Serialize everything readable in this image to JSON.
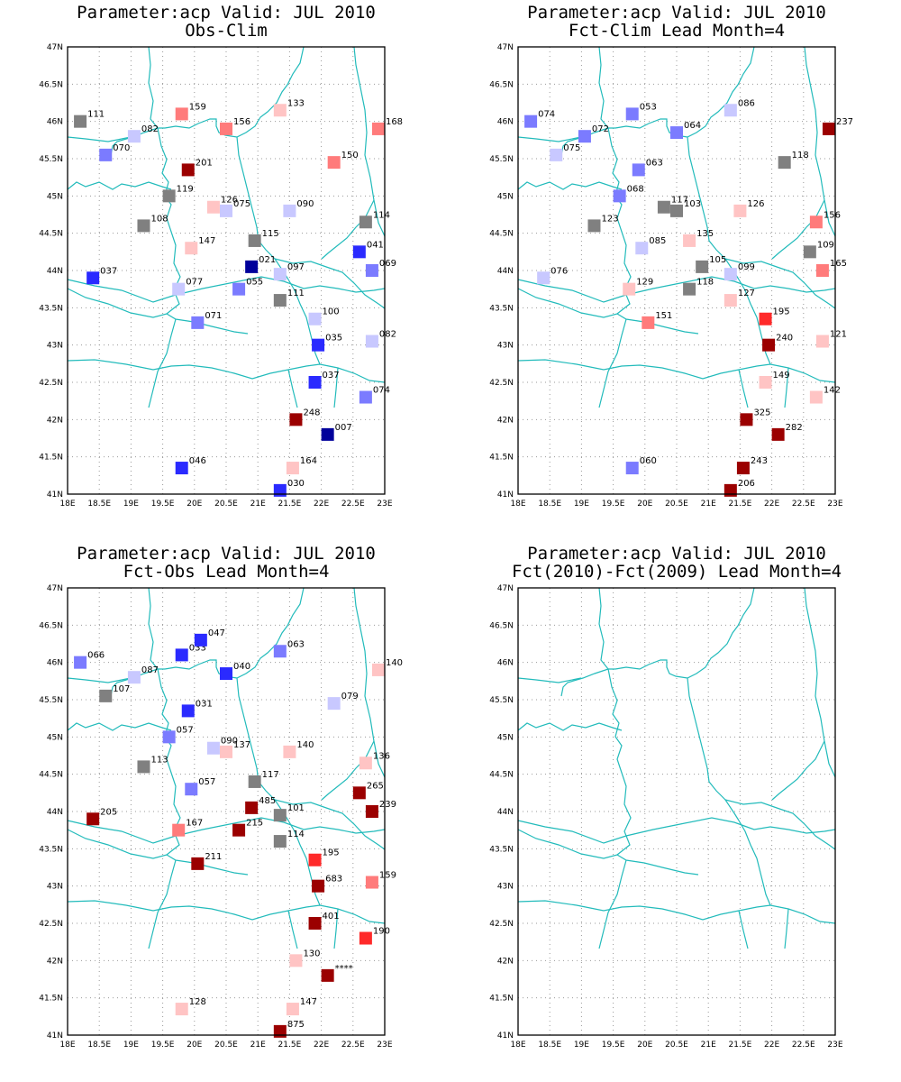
{
  "panels": [
    {
      "title1": "Parameter:acp Valid: JUL 2010",
      "title2": "Obs-Clim",
      "stations": [
        {
          "lon": 18.2,
          "lat": 46.0,
          "label": "111",
          "color": "#808080"
        },
        {
          "lon": 19.8,
          "lat": 46.1,
          "label": "159",
          "color": "#ff7b7b"
        },
        {
          "lon": 21.35,
          "lat": 46.15,
          "label": "133",
          "color": "#ffc4c4"
        },
        {
          "lon": 22.9,
          "lat": 45.9,
          "label": "168",
          "color": "#ff7b7b"
        },
        {
          "lon": 19.05,
          "lat": 45.8,
          "label": "082",
          "color": "#c8c8ff"
        },
        {
          "lon": 20.5,
          "lat": 45.9,
          "label": "156",
          "color": "#ff7b7b"
        },
        {
          "lon": 18.6,
          "lat": 45.55,
          "label": "070",
          "color": "#7b7bff"
        },
        {
          "lon": 19.9,
          "lat": 45.35,
          "label": "201",
          "color": "#9b0000"
        },
        {
          "lon": 22.2,
          "lat": 45.45,
          "label": "150",
          "color": "#ff7b7b"
        },
        {
          "lon": 19.6,
          "lat": 45.0,
          "label": "119",
          "color": "#808080"
        },
        {
          "lon": 20.3,
          "lat": 44.85,
          "label": "126",
          "color": "#ffc4c4"
        },
        {
          "lon": 20.5,
          "lat": 44.8,
          "label": "075",
          "color": "#c8c8ff"
        },
        {
          "lon": 21.5,
          "lat": 44.8,
          "label": "090",
          "color": "#c8c8ff"
        },
        {
          "lon": 22.7,
          "lat": 44.65,
          "label": "114",
          "color": "#808080"
        },
        {
          "lon": 19.2,
          "lat": 44.6,
          "label": "108",
          "color": "#808080"
        },
        {
          "lon": 19.95,
          "lat": 44.3,
          "label": "147",
          "color": "#ffc4c4"
        },
        {
          "lon": 20.95,
          "lat": 44.4,
          "label": "115",
          "color": "#808080"
        },
        {
          "lon": 22.6,
          "lat": 44.25,
          "label": "041",
          "color": "#2a2aff"
        },
        {
          "lon": 20.9,
          "lat": 44.05,
          "label": "021",
          "color": "#00009b"
        },
        {
          "lon": 21.35,
          "lat": 43.95,
          "label": "097",
          "color": "#c8c8ff"
        },
        {
          "lon": 22.8,
          "lat": 44.0,
          "label": "069",
          "color": "#7b7bff"
        },
        {
          "lon": 18.4,
          "lat": 43.9,
          "label": "037",
          "color": "#2a2aff"
        },
        {
          "lon": 19.75,
          "lat": 43.75,
          "label": "077",
          "color": "#c8c8ff"
        },
        {
          "lon": 20.7,
          "lat": 43.75,
          "label": "055",
          "color": "#7b7bff"
        },
        {
          "lon": 21.35,
          "lat": 43.6,
          "label": "111",
          "color": "#808080"
        },
        {
          "lon": 21.9,
          "lat": 43.35,
          "label": "100",
          "color": "#c8c8ff"
        },
        {
          "lon": 20.05,
          "lat": 43.3,
          "label": "071",
          "color": "#7b7bff"
        },
        {
          "lon": 21.95,
          "lat": 43.0,
          "label": "035",
          "color": "#2a2aff"
        },
        {
          "lon": 22.8,
          "lat": 43.05,
          "label": "082",
          "color": "#c8c8ff"
        },
        {
          "lon": 21.9,
          "lat": 42.5,
          "label": "037",
          "color": "#2a2aff"
        },
        {
          "lon": 22.7,
          "lat": 42.3,
          "label": "074",
          "color": "#7b7bff"
        },
        {
          "lon": 21.6,
          "lat": 42.0,
          "label": "248",
          "color": "#9b0000"
        },
        {
          "lon": 22.1,
          "lat": 41.8,
          "label": "007",
          "color": "#00009b"
        },
        {
          "lon": 19.8,
          "lat": 41.35,
          "label": "046",
          "color": "#2a2aff"
        },
        {
          "lon": 21.55,
          "lat": 41.35,
          "label": "164",
          "color": "#ffc4c4"
        },
        {
          "lon": 21.35,
          "lat": 41.05,
          "label": "030",
          "color": "#2a2aff"
        }
      ]
    },
    {
      "title1": "Parameter:acp Valid: JUL 2010",
      "title2": "Fct-Clim Lead Month=4",
      "stations": [
        {
          "lon": 18.2,
          "lat": 46.0,
          "label": "074",
          "color": "#7b7bff"
        },
        {
          "lon": 19.8,
          "lat": 46.1,
          "label": "053",
          "color": "#7b7bff"
        },
        {
          "lon": 21.35,
          "lat": 46.15,
          "label": "086",
          "color": "#c8c8ff"
        },
        {
          "lon": 22.9,
          "lat": 45.9,
          "label": "237",
          "color": "#9b0000"
        },
        {
          "lon": 19.05,
          "lat": 45.8,
          "label": "072",
          "color": "#7b7bff"
        },
        {
          "lon": 20.5,
          "lat": 45.85,
          "label": "064",
          "color": "#7b7bff"
        },
        {
          "lon": 18.6,
          "lat": 45.55,
          "label": "075",
          "color": "#c8c8ff"
        },
        {
          "lon": 19.9,
          "lat": 45.35,
          "label": "063",
          "color": "#7b7bff"
        },
        {
          "lon": 22.2,
          "lat": 45.45,
          "label": "118",
          "color": "#808080"
        },
        {
          "lon": 19.6,
          "lat": 45.0,
          "label": "068",
          "color": "#7b7bff"
        },
        {
          "lon": 20.3,
          "lat": 44.85,
          "label": "117",
          "color": "#808080"
        },
        {
          "lon": 20.5,
          "lat": 44.8,
          "label": "103",
          "color": "#808080"
        },
        {
          "lon": 21.5,
          "lat": 44.8,
          "label": "126",
          "color": "#ffc4c4"
        },
        {
          "lon": 22.7,
          "lat": 44.65,
          "label": "156",
          "color": "#ff7b7b"
        },
        {
          "lon": 19.2,
          "lat": 44.6,
          "label": "123",
          "color": "#808080"
        },
        {
          "lon": 19.95,
          "lat": 44.3,
          "label": "085",
          "color": "#c8c8ff"
        },
        {
          "lon": 20.7,
          "lat": 44.4,
          "label": "135",
          "color": "#ffc4c4"
        },
        {
          "lon": 22.6,
          "lat": 44.25,
          "label": "109",
          "color": "#808080"
        },
        {
          "lon": 20.9,
          "lat": 44.05,
          "label": "105",
          "color": "#808080"
        },
        {
          "lon": 21.35,
          "lat": 43.95,
          "label": "099",
          "color": "#c8c8ff"
        },
        {
          "lon": 22.8,
          "lat": 44.0,
          "label": "165",
          "color": "#ff7b7b"
        },
        {
          "lon": 18.4,
          "lat": 43.9,
          "label": "076",
          "color": "#c8c8ff"
        },
        {
          "lon": 19.75,
          "lat": 43.75,
          "label": "129",
          "color": "#ffc4c4"
        },
        {
          "lon": 20.7,
          "lat": 43.75,
          "label": "118",
          "color": "#808080"
        },
        {
          "lon": 21.35,
          "lat": 43.6,
          "label": "127",
          "color": "#ffc4c4"
        },
        {
          "lon": 21.9,
          "lat": 43.35,
          "label": "195",
          "color": "#ff2a2a"
        },
        {
          "lon": 20.05,
          "lat": 43.3,
          "label": "151",
          "color": "#ff7b7b"
        },
        {
          "lon": 21.95,
          "lat": 43.0,
          "label": "240",
          "color": "#9b0000"
        },
        {
          "lon": 22.8,
          "lat": 43.05,
          "label": "121",
          "color": "#ffc4c4"
        },
        {
          "lon": 21.9,
          "lat": 42.5,
          "label": "149",
          "color": "#ffc4c4"
        },
        {
          "lon": 22.7,
          "lat": 42.3,
          "label": "142",
          "color": "#ffc4c4"
        },
        {
          "lon": 21.6,
          "lat": 42.0,
          "label": "325",
          "color": "#9b0000"
        },
        {
          "lon": 22.1,
          "lat": 41.8,
          "label": "282",
          "color": "#9b0000"
        },
        {
          "lon": 19.8,
          "lat": 41.35,
          "label": "060",
          "color": "#7b7bff"
        },
        {
          "lon": 21.55,
          "lat": 41.35,
          "label": "243",
          "color": "#9b0000"
        },
        {
          "lon": 21.35,
          "lat": 41.05,
          "label": "206",
          "color": "#9b0000"
        }
      ]
    },
    {
      "title1": "Parameter:acp Valid: JUL 2010",
      "title2": "Fct-Obs Lead Month=4",
      "stations": [
        {
          "lon": 18.2,
          "lat": 46.0,
          "label": "066",
          "color": "#7b7bff"
        },
        {
          "lon": 19.8,
          "lat": 46.1,
          "label": "033",
          "color": "#2a2aff"
        },
        {
          "lon": 20.1,
          "lat": 46.3,
          "label": "047",
          "color": "#2a2aff"
        },
        {
          "lon": 21.35,
          "lat": 46.15,
          "label": "063",
          "color": "#7b7bff"
        },
        {
          "lon": 22.9,
          "lat": 45.9,
          "label": "140",
          "color": "#ffc4c4"
        },
        {
          "lon": 19.05,
          "lat": 45.8,
          "label": "087",
          "color": "#c8c8ff"
        },
        {
          "lon": 20.5,
          "lat": 45.85,
          "label": "040",
          "color": "#2a2aff"
        },
        {
          "lon": 18.6,
          "lat": 45.55,
          "label": "107",
          "color": "#808080"
        },
        {
          "lon": 19.9,
          "lat": 45.35,
          "label": "031",
          "color": "#2a2aff"
        },
        {
          "lon": 22.2,
          "lat": 45.45,
          "label": "079",
          "color": "#c8c8ff"
        },
        {
          "lon": 19.6,
          "lat": 45.0,
          "label": "057",
          "color": "#7b7bff"
        },
        {
          "lon": 20.3,
          "lat": 44.85,
          "label": "090",
          "color": "#c8c8ff"
        },
        {
          "lon": 20.5,
          "lat": 44.8,
          "label": "137",
          "color": "#ffc4c4"
        },
        {
          "lon": 21.5,
          "lat": 44.8,
          "label": "140",
          "color": "#ffc4c4"
        },
        {
          "lon": 22.7,
          "lat": 44.65,
          "label": "136",
          "color": "#ffc4c4"
        },
        {
          "lon": 19.2,
          "lat": 44.6,
          "label": "113",
          "color": "#808080"
        },
        {
          "lon": 19.95,
          "lat": 44.3,
          "label": "057",
          "color": "#7b7bff"
        },
        {
          "lon": 20.95,
          "lat": 44.4,
          "label": "117",
          "color": "#808080"
        },
        {
          "lon": 22.6,
          "lat": 44.25,
          "label": "265",
          "color": "#9b0000"
        },
        {
          "lon": 20.9,
          "lat": 44.05,
          "label": "485",
          "color": "#9b0000"
        },
        {
          "lon": 21.35,
          "lat": 43.95,
          "label": "101",
          "color": "#808080"
        },
        {
          "lon": 22.8,
          "lat": 44.0,
          "label": "239",
          "color": "#9b0000"
        },
        {
          "lon": 18.4,
          "lat": 43.9,
          "label": "205",
          "color": "#9b0000"
        },
        {
          "lon": 19.75,
          "lat": 43.75,
          "label": "167",
          "color": "#ff7b7b"
        },
        {
          "lon": 20.7,
          "lat": 43.75,
          "label": "215",
          "color": "#9b0000"
        },
        {
          "lon": 21.35,
          "lat": 43.6,
          "label": "114",
          "color": "#808080"
        },
        {
          "lon": 21.9,
          "lat": 43.35,
          "label": "195",
          "color": "#ff2a2a"
        },
        {
          "lon": 20.05,
          "lat": 43.3,
          "label": "211",
          "color": "#9b0000"
        },
        {
          "lon": 21.95,
          "lat": 43.0,
          "label": "683",
          "color": "#9b0000"
        },
        {
          "lon": 22.8,
          "lat": 43.05,
          "label": "159",
          "color": "#ff7b7b"
        },
        {
          "lon": 21.9,
          "lat": 42.5,
          "label": "401",
          "color": "#9b0000"
        },
        {
          "lon": 22.7,
          "lat": 42.3,
          "label": "190",
          "color": "#ff2a2a"
        },
        {
          "lon": 21.6,
          "lat": 42.0,
          "label": "130",
          "color": "#ffc4c4"
        },
        {
          "lon": 22.1,
          "lat": 41.8,
          "label": "****",
          "color": "#9b0000"
        },
        {
          "lon": 19.8,
          "lat": 41.35,
          "label": "128",
          "color": "#ffc4c4"
        },
        {
          "lon": 21.55,
          "lat": 41.35,
          "label": "147",
          "color": "#ffc4c4"
        },
        {
          "lon": 21.35,
          "lat": 41.05,
          "label": "875",
          "color": "#9b0000"
        }
      ]
    },
    {
      "title1": "Parameter:acp Valid: JUL 2010",
      "title2": "Fct(2010)-Fct(2009) Lead Month=4",
      "stations": []
    }
  ],
  "axes": {
    "lon_ticks": [
      "18E",
      "18.5E",
      "19E",
      "19.5E",
      "20E",
      "20.5E",
      "21E",
      "21.5E",
      "22E",
      "22.5E",
      "23E"
    ],
    "lat_ticks": [
      "41N",
      "41.5N",
      "42N",
      "42.5N",
      "43N",
      "43.5N",
      "44N",
      "44.5N",
      "45N",
      "45.5N",
      "46N",
      "46.5N",
      "47N"
    ],
    "lon_range": [
      18,
      23
    ],
    "lat_range": [
      41,
      47
    ]
  },
  "colors": {
    "border": "#22bbbb",
    "frame": "#000000",
    "grid": "#999999"
  }
}
